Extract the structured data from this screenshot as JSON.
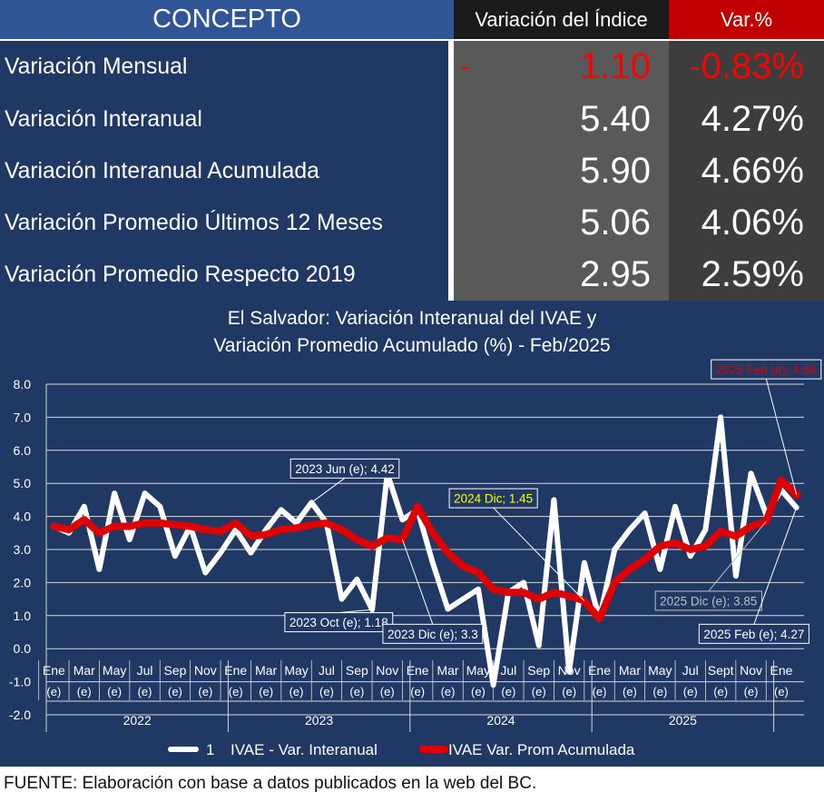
{
  "table": {
    "headers": {
      "concept": "CONCEPTO",
      "index_change": "Variación del Índice",
      "pct": "Var.%"
    },
    "rows": [
      {
        "label": "Variación Mensual",
        "sign": "-",
        "index": "1.10",
        "pct": "-0.83%",
        "negative": true
      },
      {
        "label": "Variación Interanual",
        "sign": "",
        "index": "5.40",
        "pct": "4.27%",
        "negative": false
      },
      {
        "label": "Variación Interanual Acumulada",
        "sign": "",
        "index": "5.90",
        "pct": "4.66%",
        "negative": false
      },
      {
        "label": "Variación Promedio Últimos 12 Meses",
        "sign": "",
        "index": "5.06",
        "pct": "4.06%",
        "negative": false
      },
      {
        "label": "Variación Promedio Respecto 2019",
        "sign": "",
        "index": "2.95",
        "pct": "2.59%",
        "negative": false
      }
    ],
    "colors": {
      "navy": "#203864",
      "header_blue": "#2f5597",
      "dark": "#1a1a1a",
      "red": "#c00000",
      "gray": "#595959",
      "dark_gray": "#3d3d3d",
      "negative_text": "#ff0000"
    }
  },
  "chart_data": {
    "type": "line",
    "title_line1": "El Salvador: Variación Interanual del IVAE y",
    "title_line2": "Variación Promedio Acumulado (%) - Feb/2025",
    "ylim": [
      -2.0,
      8.0
    ],
    "yticks": [
      "8.0",
      "7.0",
      "6.0",
      "5.0",
      "4.0",
      "3.0",
      "2.0",
      "1.0",
      "0.0",
      "-1.0",
      "-2.0"
    ],
    "month_labels": [
      "Ene",
      "",
      "Mar",
      "",
      "May",
      "",
      "Jul",
      "",
      "Sep",
      "",
      "Nov",
      "",
      "Ene",
      "",
      "Mar",
      "",
      "May",
      "",
      "Jul",
      "",
      "Sep",
      "",
      "Nov",
      "",
      "Ene",
      "",
      "Mar",
      "",
      "May",
      "",
      "Jul",
      "",
      "Sep",
      "",
      "Nov",
      "",
      "Ene",
      "",
      "Mar",
      "",
      "May",
      "",
      "Jul",
      "",
      "Sept",
      "",
      "Nov",
      "",
      "Ene",
      ""
    ],
    "e_mark": "(e)",
    "years": [
      "2022",
      "2023",
      "2024",
      "2025"
    ],
    "grid": true,
    "legend_position": "bottom",
    "series": [
      {
        "name": "IVAE - Var. Interanual",
        "legend_prefix": "1",
        "color": "#ffffff",
        "values": [
          3.7,
          3.5,
          4.3,
          2.4,
          4.7,
          3.3,
          4.7,
          4.3,
          2.8,
          3.7,
          2.3,
          2.9,
          3.6,
          2.9,
          3.6,
          4.2,
          3.8,
          4.42,
          3.8,
          1.5,
          2.1,
          1.18,
          5.3,
          3.9,
          4.2,
          2.6,
          1.2,
          1.5,
          1.8,
          -1.1,
          1.7,
          2.0,
          0.1,
          4.5,
          -0.7,
          2.6,
          0.9,
          3.0,
          3.6,
          4.1,
          2.4,
          4.3,
          2.8,
          3.6,
          7.0,
          2.2,
          5.3,
          4.06,
          4.8,
          4.27
        ]
      },
      {
        "name": "IVAE Var. Prom Acumulada",
        "color": "#e00000",
        "values": [
          3.7,
          3.6,
          3.9,
          3.5,
          3.7,
          3.7,
          3.8,
          3.8,
          3.75,
          3.7,
          3.6,
          3.55,
          3.8,
          3.4,
          3.45,
          3.6,
          3.65,
          3.75,
          3.8,
          3.6,
          3.3,
          3.1,
          3.35,
          3.3,
          4.3,
          3.5,
          2.9,
          2.5,
          2.3,
          1.8,
          1.7,
          1.7,
          1.5,
          1.7,
          1.6,
          1.45,
          0.9,
          2.0,
          2.4,
          2.7,
          3.1,
          3.2,
          3.0,
          3.1,
          3.55,
          3.4,
          3.7,
          3.85,
          5.1,
          4.66
        ]
      }
    ],
    "annotations": [
      {
        "text": "2023 Jun (e); 4.42",
        "color": "#ffffff",
        "border": "#ffffff",
        "fill": "#203864",
        "point_index": 17,
        "series": 0,
        "box_at_index": 19.2,
        "box_at_value": 5.45
      },
      {
        "text": "2023 Oct (e); 1.18",
        "color": "#ffffff",
        "border": "#ffffff",
        "fill": "#203864",
        "point_index": 21,
        "series": 0,
        "box_at_index": 18.8,
        "box_at_value": 0.8
      },
      {
        "text": "2023 Dic (e);  3.3",
        "color": "#ffffff",
        "border": "#ffffff",
        "fill": "#203864",
        "point_index": 23,
        "series": 1,
        "box_at_index": 25.0,
        "box_at_value": 0.45
      },
      {
        "text": "2024 Dic;  1.45",
        "color": "#ffff00",
        "border": "#ffffff",
        "fill": "#203864",
        "point_index": 35,
        "series": 1,
        "box_at_index": 29.0,
        "box_at_value": 4.55
      },
      {
        "text": "2025 Dic (e);  3.85",
        "color": "#bfbfbf",
        "border": "#bfbfbf",
        "fill": "#203864",
        "point_index": 47,
        "series": 1,
        "box_at_index": 43.2,
        "box_at_value": 1.45
      },
      {
        "text": "2025 Feb (e); 4.27",
        "color": "#ffffff",
        "border": "#ffffff",
        "fill": "#203864",
        "point_index": 49,
        "series": 0,
        "box_at_index": 46.2,
        "box_at_value": 0.45
      },
      {
        "text": "2025 Feb (e);  4.66",
        "color": "#e00000",
        "border": "#ffffff",
        "fill": "#203864",
        "point_index": 49,
        "series": 1,
        "box_at_index": 47.0,
        "box_at_value": 8.45
      }
    ]
  },
  "footer": "FUENTE:  Elaboración con base a datos publicados en la web del BC."
}
